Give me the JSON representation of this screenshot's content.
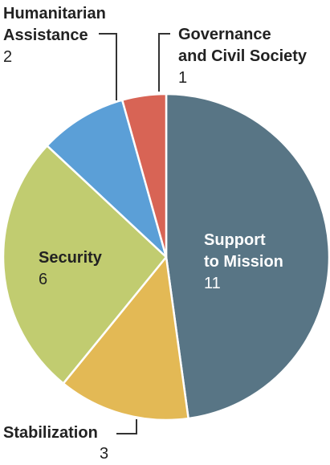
{
  "chart_data": {
    "type": "pie",
    "title": "",
    "start_angle_deg": 0,
    "direction": "clockwise",
    "slices": [
      {
        "label": "Support\nto Mission",
        "value": 11,
        "color": "#587585"
      },
      {
        "label": "Stabilization",
        "value": 3,
        "color": "#e3b955"
      },
      {
        "label": "Security",
        "value": 6,
        "color": "#c1cc70"
      },
      {
        "label": "Humanitarian\nAssistance",
        "value": 2,
        "color": "#5b9fd7"
      },
      {
        "label": "Governance\nand Civil Society",
        "value": 1,
        "color": "#d86455"
      }
    ],
    "value_labels": [
      "11",
      "3",
      "6",
      "2",
      "1"
    ]
  }
}
